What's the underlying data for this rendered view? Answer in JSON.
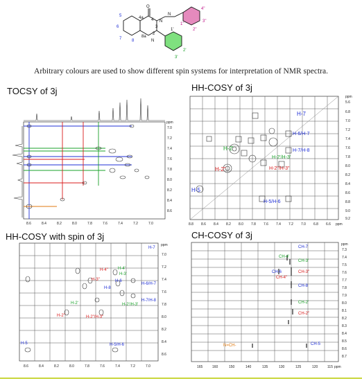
{
  "structure": {
    "atoms": [
      "5",
      "6",
      "7",
      "8",
      "4a",
      "8a",
      "O",
      "4",
      "3",
      "N",
      "N",
      "2",
      "N",
      "1\"",
      "2\"",
      "3\"",
      "4\"",
      "1'",
      "2'",
      "3'"
    ]
  },
  "caption": "Arbitrary colours are used to show different spin systems for interpretation of NMR spectra.",
  "panels": {
    "tocsy": {
      "title": "TOCSY of 3j",
      "ppm": "ppm",
      "yticks": [
        "7.0",
        "7.2",
        "7.4",
        "7.6",
        "7.8",
        "8.0",
        "8.2",
        "8.4",
        "8.6"
      ],
      "xticks": [
        "8.6",
        "8.4",
        "8.2",
        "8.0",
        "7.8",
        "7.6",
        "7.4",
        "7.2",
        "7.0"
      ]
    },
    "hhcosy": {
      "title": "HH-COSY of 3j",
      "ppm": "ppm",
      "yticks": [
        "5.6",
        "6.8",
        "7.0",
        "7.2",
        "7.4",
        "7.6",
        "7.8",
        "8.0",
        "8.2",
        "8.4",
        "8.6",
        "8.8",
        "9.0",
        "9.2"
      ],
      "xticks": [
        "8.8",
        "8.6",
        "8.4",
        "8.2",
        "8.0",
        "7.8",
        "7.6",
        "7.4",
        "7.2",
        "7.0",
        "6.8",
        "6.6",
        "ppm"
      ],
      "labels": {
        "h7": "H-7",
        "h6h7": "H-6/H-7",
        "h7h8": "H-7/H-8",
        "h2pp": "H-2\"",
        "h2p3p": "H-2'/H-3'",
        "h2p": "H-2'",
        "h2pp3pp": "H-2\"/H-3\"",
        "h5": "H-5",
        "h5h6": "H-5/H-6"
      }
    },
    "hhspin": {
      "title": "HH-COSY with spin of 3j",
      "ppm": "ppm",
      "yticks": [
        "7.0",
        "7.2",
        "7.4",
        "7.6",
        "7.8",
        "8.0",
        "8.2",
        "8.4",
        "8.6"
      ],
      "xticks": [
        "8.6",
        "8.4",
        "8.2",
        "8.0",
        "7.8",
        "7.6",
        "7.4",
        "7.2",
        "7.0"
      ],
      "labels": {
        "h7": "H-7",
        "h4pp": "H-4\"",
        "h3pp": "H-3\"",
        "h6": "H-6",
        "h8": "H-8",
        "h2p": "H-2'",
        "h2pp": "H-2\"",
        "h5": "H-5",
        "h6h7": "H-6/H-7",
        "h7h8": "H-7/H-8",
        "h2p3p": "H-2'/H-3'",
        "h2pp3pp": "H-2\"/H-3\"",
        "h5h6": "H-5/H-6",
        "h3p": "H-3'",
        "h4p": "H-4'"
      }
    },
    "chcosy": {
      "title": "CH-COSY of 3j",
      "ppm": "ppm",
      "yticks": [
        "7.3",
        "7.4",
        "7.5",
        "7.6",
        "7.7",
        "7.8",
        "7.9",
        "8.0",
        "8.1",
        "8.2",
        "8.3",
        "8.4",
        "8.5",
        "8.6",
        "8.7"
      ],
      "xticks": [
        "165",
        "160",
        "150",
        "140",
        "135",
        "130",
        "125",
        "120",
        "115",
        "ppm"
      ],
      "labels": {
        "ch7": "CH-7",
        "ch4p": "CH-4'",
        "ch3p": "CH-3'",
        "ch6": "CH-6",
        "ch4pp": "CH-4\"",
        "ch3pp": "CH-3\"",
        "ch8": "CH-8",
        "ch2p": "CH-2'",
        "ch2pp": "CH-2\"",
        "nch": "N=CH-",
        "ch5": "CH-5"
      }
    }
  },
  "colors": {
    "blue": "#1f2fd6",
    "green": "#1aa12a",
    "red": "#d81b1b",
    "orange": "#e07a10",
    "magenta": "#c0158a",
    "lime": "#c9d63a"
  }
}
